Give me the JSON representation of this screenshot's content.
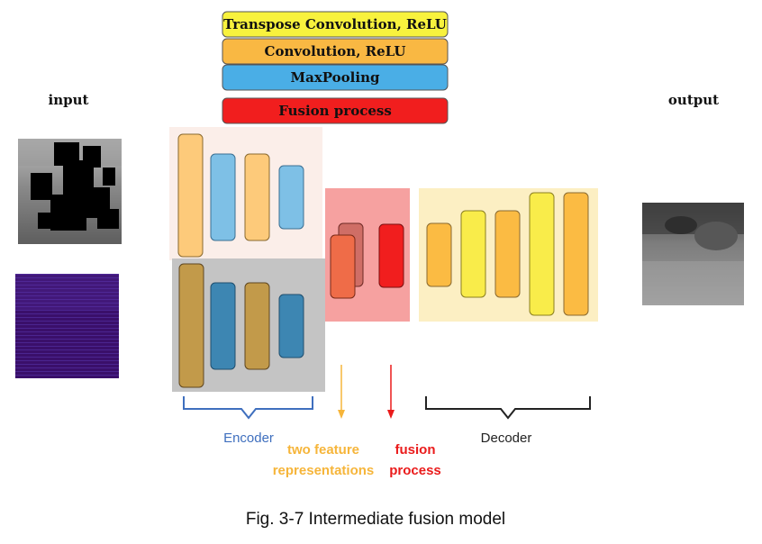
{
  "legend": {
    "transpose": {
      "label": "Transpose Convolution, ReLU",
      "color": "#f8f23d"
    },
    "conv": {
      "label": "Convolution, ReLU",
      "color": "#f9b843"
    },
    "pool": {
      "label": "MaxPooling",
      "color": "#4aaee6"
    },
    "fusion": {
      "label": "Fusion process",
      "color": "#f11e1e"
    }
  },
  "labels": {
    "input": "input",
    "output": "output",
    "encoder": "Encoder",
    "decoder": "Decoder",
    "two_feature_line1": "two feature",
    "two_feature_line2": "representations",
    "fusion_line1": "fusion",
    "fusion_line2": "process"
  },
  "caption": "Fig. 3-7 Intermediate fusion model",
  "colors": {
    "encoder_brace": "#3f6fbe",
    "feature_text": "#f6b53a",
    "fusion_text": "#ea1b1b",
    "decoder_brace": "#222222",
    "lidar_purple": "#3a0f6a"
  },
  "icons": {
    "input_rgb": "masked-grayscale-road-image",
    "input_depth": "purple-depth-map-image",
    "output_rgb": "reconstructed-road-image"
  }
}
